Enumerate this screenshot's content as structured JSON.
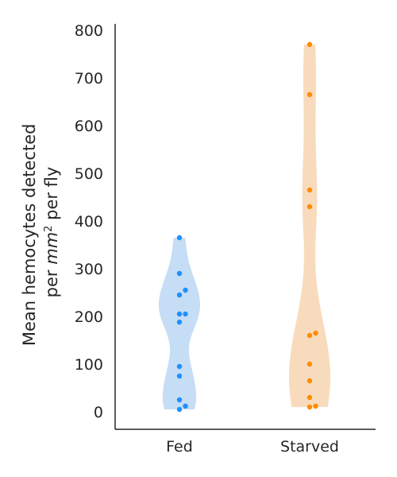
{
  "chart_data": {
    "type": "violin-swarm",
    "categories": [
      "Fed",
      "Starved"
    ],
    "ylabel_line1": "Mean hemocytes detected",
    "ylabel_line2_prefix": "per ",
    "ylabel_line2_unit": "mm",
    "ylabel_line2_exp": "2",
    "ylabel_line2_suffix": " per fly",
    "ylim": [
      -35,
      820
    ],
    "yticks": [
      0,
      100,
      200,
      300,
      400,
      500,
      600,
      700,
      800
    ],
    "ytick_labels": [
      "0",
      "100",
      "200",
      "300",
      "400",
      "500",
      "600",
      "700",
      "800"
    ],
    "series": [
      {
        "category": "Fed",
        "values": [
          365,
          290,
          255,
          245,
          205,
          205,
          188,
          95,
          75,
          25,
          12,
          5
        ],
        "point_color": "#1e90ff",
        "violin_color": "#c5ddf5"
      },
      {
        "category": "Starved",
        "values": [
          770,
          665,
          465,
          430,
          165,
          160,
          100,
          65,
          30,
          12,
          10
        ],
        "point_color": "#ff8c00",
        "violin_color": "#f8dbbd"
      }
    ]
  }
}
